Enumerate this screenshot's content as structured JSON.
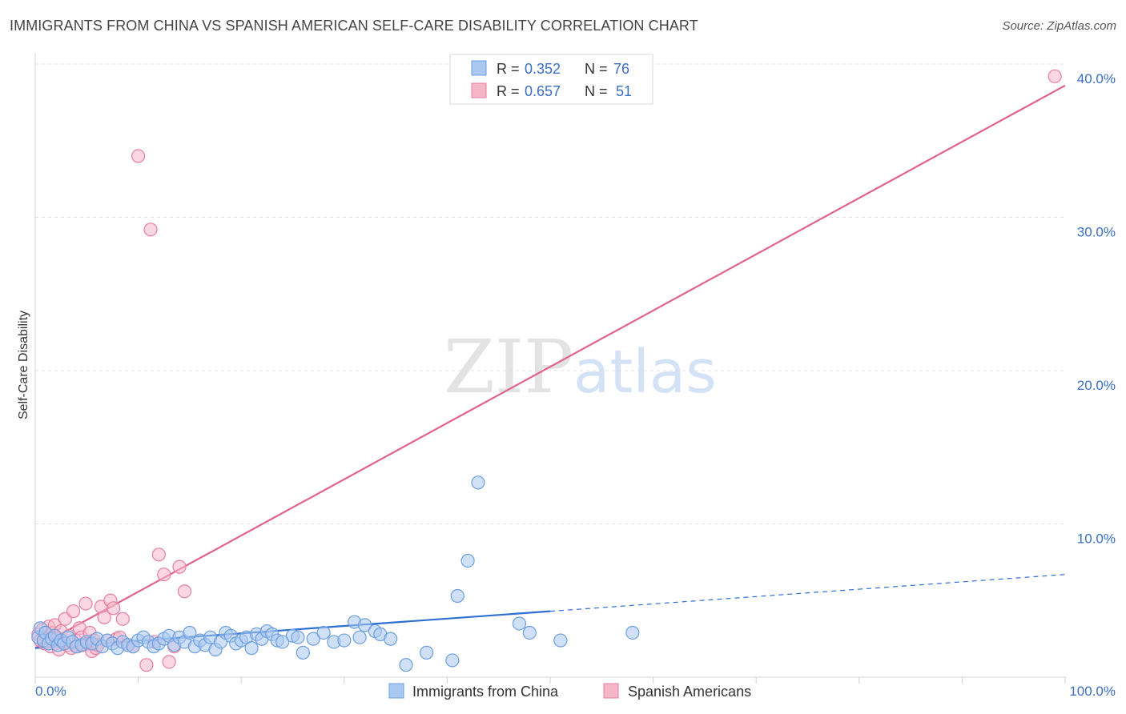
{
  "title": "IMMIGRANTS FROM CHINA VS SPANISH AMERICAN SELF-CARE DISABILITY CORRELATION CHART",
  "source": "Source: ZipAtlas.com",
  "watermark": {
    "zip": "ZIP",
    "atlas": "atlas"
  },
  "colors": {
    "blue": "#6b9fe0",
    "blue_fill": "#aac8f0",
    "blue_line": "#2e6fd1",
    "pink": "#e67fa0",
    "pink_fill": "#f5b6ca",
    "pink_line": "#e0638a",
    "axis_label": "#3a6fc4"
  },
  "legend": {
    "rows": [
      {
        "r_label": "R = ",
        "r_value": "0.352",
        "n_label": "N = ",
        "n_value": "76"
      },
      {
        "r_label": "R = ",
        "r_value": "0.657",
        "n_label": "N = ",
        "n_value": "51"
      }
    ]
  },
  "bottom_legend": [
    "Immigrants from China",
    "Spanish Americans"
  ],
  "chart_data": {
    "type": "scatter",
    "title": "IMMIGRANTS FROM CHINA VS SPANISH AMERICAN SELF-CARE DISABILITY CORRELATION CHART",
    "xlabel": "",
    "ylabel": "Self-Care Disability",
    "xlim": [
      0,
      100
    ],
    "ylim": [
      0,
      40
    ],
    "x_tick_labels": [
      "0.0%",
      "100.0%"
    ],
    "y_ticks": [
      10,
      20,
      30,
      40
    ],
    "y_tick_labels": [
      "10.0%",
      "20.0%",
      "30.0%",
      "40.0%"
    ],
    "grid": true,
    "legend_position": "top-center",
    "series": [
      {
        "name": "Immigrants from China",
        "color": "#6b9fe0",
        "r": 0.352,
        "n": 76,
        "trend": {
          "x0": 0,
          "y0": 1.9,
          "x1": 50,
          "y1": 4.3,
          "dashed_to_x": 100,
          "dashed_to_y": 6.7
        },
        "points": [
          [
            0.3,
            2.6
          ],
          [
            0.5,
            3.2
          ],
          [
            0.8,
            2.4
          ],
          [
            1.0,
            2.9
          ],
          [
            1.3,
            2.2
          ],
          [
            1.6,
            2.5
          ],
          [
            1.9,
            2.7
          ],
          [
            2.2,
            2.1
          ],
          [
            2.5,
            2.4
          ],
          [
            2.8,
            2.2
          ],
          [
            3.2,
            2.6
          ],
          [
            3.6,
            2.3
          ],
          [
            4.0,
            2.0
          ],
          [
            4.5,
            2.1
          ],
          [
            5.0,
            2.3
          ],
          [
            5.5,
            2.2
          ],
          [
            6.0,
            2.5
          ],
          [
            6.5,
            2.0
          ],
          [
            7.0,
            2.4
          ],
          [
            7.5,
            2.2
          ],
          [
            8.0,
            1.9
          ],
          [
            8.5,
            2.3
          ],
          [
            9.0,
            2.1
          ],
          [
            9.5,
            2.0
          ],
          [
            10.0,
            2.4
          ],
          [
            10.5,
            2.6
          ],
          [
            11.0,
            2.3
          ],
          [
            11.5,
            2.0
          ],
          [
            12.0,
            2.2
          ],
          [
            12.5,
            2.5
          ],
          [
            13.0,
            2.7
          ],
          [
            13.5,
            2.1
          ],
          [
            14.0,
            2.6
          ],
          [
            14.5,
            2.3
          ],
          [
            15.0,
            2.9
          ],
          [
            15.5,
            2.0
          ],
          [
            16.0,
            2.4
          ],
          [
            16.5,
            2.1
          ],
          [
            17.0,
            2.6
          ],
          [
            17.5,
            1.8
          ],
          [
            18.0,
            2.3
          ],
          [
            18.5,
            2.9
          ],
          [
            19.0,
            2.7
          ],
          [
            19.5,
            2.2
          ],
          [
            20.0,
            2.4
          ],
          [
            20.5,
            2.6
          ],
          [
            21.0,
            1.9
          ],
          [
            21.5,
            2.8
          ],
          [
            22.0,
            2.5
          ],
          [
            22.5,
            3.0
          ],
          [
            23.0,
            2.8
          ],
          [
            23.5,
            2.4
          ],
          [
            24.0,
            2.3
          ],
          [
            25.0,
            2.7
          ],
          [
            25.5,
            2.6
          ],
          [
            26.0,
            1.6
          ],
          [
            27.0,
            2.5
          ],
          [
            28.0,
            2.9
          ],
          [
            29.0,
            2.3
          ],
          [
            30.0,
            2.4
          ],
          [
            31.0,
            3.6
          ],
          [
            31.5,
            2.6
          ],
          [
            32.0,
            3.4
          ],
          [
            33.0,
            3.0
          ],
          [
            33.5,
            2.8
          ],
          [
            34.5,
            2.5
          ],
          [
            36.0,
            0.8
          ],
          [
            38.0,
            1.6
          ],
          [
            40.5,
            1.1
          ],
          [
            41.0,
            5.3
          ],
          [
            42.0,
            7.6
          ],
          [
            43.0,
            12.7
          ],
          [
            47.0,
            3.5
          ],
          [
            48.0,
            2.9
          ],
          [
            51.0,
            2.4
          ],
          [
            58.0,
            2.9
          ]
        ]
      },
      {
        "name": "Spanish Americans",
        "color": "#e67fa0",
        "r": 0.657,
        "n": 51,
        "trend": {
          "x0": 0,
          "y0": 1.9,
          "x1": 100,
          "y1": 38.6
        },
        "points": [
          [
            0.3,
            2.8
          ],
          [
            0.5,
            2.4
          ],
          [
            0.7,
            3.1
          ],
          [
            0.9,
            2.2
          ],
          [
            1.1,
            2.6
          ],
          [
            1.3,
            3.3
          ],
          [
            1.5,
            2.0
          ],
          [
            1.7,
            2.9
          ],
          [
            1.9,
            3.4
          ],
          [
            2.1,
            2.5
          ],
          [
            2.3,
            1.8
          ],
          [
            2.5,
            3.0
          ],
          [
            2.7,
            2.3
          ],
          [
            2.9,
            3.8
          ],
          [
            3.1,
            2.1
          ],
          [
            3.3,
            2.7
          ],
          [
            3.5,
            1.9
          ],
          [
            3.7,
            4.3
          ],
          [
            3.9,
            2.4
          ],
          [
            4.1,
            2.0
          ],
          [
            4.3,
            3.2
          ],
          [
            4.5,
            2.6
          ],
          [
            4.7,
            2.1
          ],
          [
            4.9,
            4.8
          ],
          [
            5.1,
            2.2
          ],
          [
            5.3,
            2.9
          ],
          [
            5.5,
            1.7
          ],
          [
            5.7,
            2.4
          ],
          [
            5.9,
            1.9
          ],
          [
            6.1,
            2.1
          ],
          [
            6.4,
            4.6
          ],
          [
            6.7,
            3.9
          ],
          [
            7.0,
            2.4
          ],
          [
            7.3,
            5.0
          ],
          [
            7.6,
            4.5
          ],
          [
            7.9,
            2.5
          ],
          [
            8.2,
            2.6
          ],
          [
            8.5,
            3.8
          ],
          [
            9.0,
            2.1
          ],
          [
            9.5,
            2.0
          ],
          [
            10.0,
            34.0
          ],
          [
            10.8,
            0.8
          ],
          [
            11.2,
            29.2
          ],
          [
            11.6,
            2.3
          ],
          [
            12.0,
            8.0
          ],
          [
            12.5,
            6.7
          ],
          [
            13.0,
            1.0
          ],
          [
            13.5,
            2.0
          ],
          [
            14.0,
            7.2
          ],
          [
            14.5,
            5.6
          ],
          [
            99.0,
            39.2
          ]
        ]
      }
    ]
  }
}
